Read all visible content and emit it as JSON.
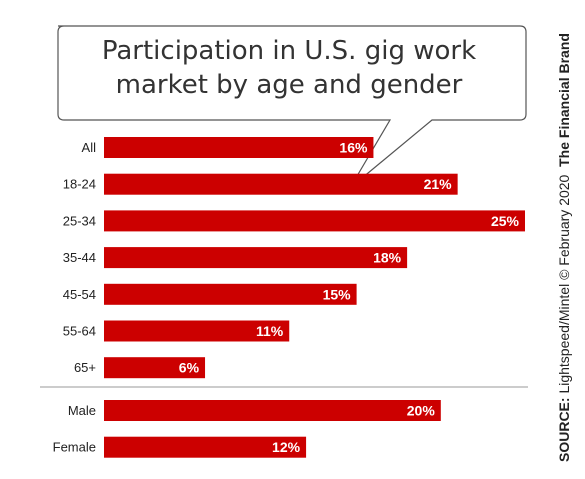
{
  "chart_data": {
    "type": "bar",
    "orientation": "horizontal",
    "title": "Participation in U.S. gig work market by age and gender",
    "title_lines": [
      "Participation in U.S. gig work",
      "market by age and gender"
    ],
    "groups": [
      {
        "categories": [
          "All",
          "18-24",
          "25-34",
          "35-44",
          "45-54",
          "55-64",
          "65+"
        ],
        "values": [
          16,
          21,
          25,
          18,
          15,
          11,
          6
        ],
        "labels": [
          "16%",
          "21%",
          "25%",
          "18%",
          "15%",
          "11%",
          "6%"
        ]
      },
      {
        "categories": [
          "Male",
          "Female"
        ],
        "values": [
          20,
          12
        ],
        "labels": [
          "20%",
          "12%"
        ]
      }
    ],
    "value_unit": "%",
    "xlim": [
      0,
      25
    ],
    "grid": false,
    "bar_color": "#cc0000",
    "label_color": "#ffffff"
  },
  "source": {
    "prefix": "SOURCE:",
    "text": "Lightspeed/Mintel © February 2020",
    "brand": "The Financial Brand"
  },
  "colors": {
    "bar": "#cc0000",
    "bubble_stroke": "#555555",
    "divider": "#999999",
    "text": "#222222"
  }
}
